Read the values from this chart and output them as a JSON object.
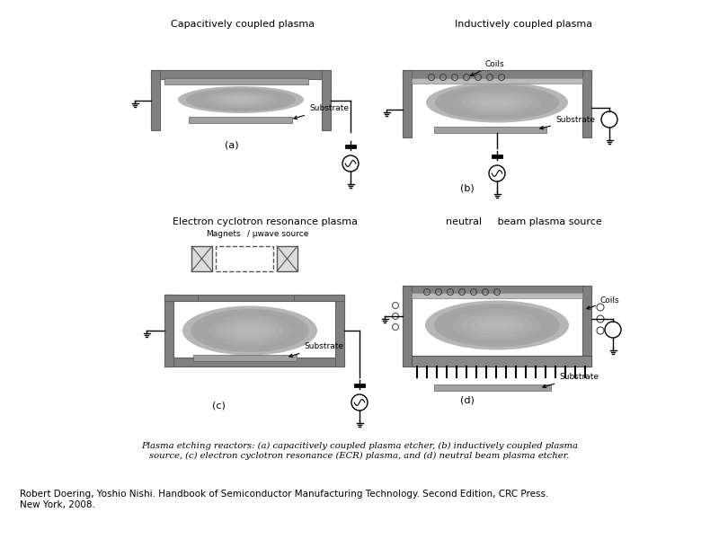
{
  "background_color": "#ffffff",
  "title_a": "Capacitively coupled plasma",
  "title_b": "Inductively coupled plasma",
  "title_c": "Electron cyclotron resonance plasma",
  "title_d": "neutral     beam plasma source",
  "label_a": "(a)",
  "label_b": "(b)",
  "label_c": "(c)",
  "label_d": "(d)",
  "caption": "Plasma etching reactors: (a) capacitively coupled plasma etcher, (b) inductively coupled plasma\nsource, (c) electron cyclotron resonance (ECR) plasma, and (d) neutral beam plasma etcher.",
  "reference": "Robert Doering, Yoshio Nishi. Handbook of Semiconductor Manufacturing Technology. Second Edition, CRC Press.\nNew York, 2008.",
  "wall_color": "#808080",
  "wall_color_dark": "#606060",
  "substrate_color": "#a0a0a0",
  "text_color": "#000000"
}
